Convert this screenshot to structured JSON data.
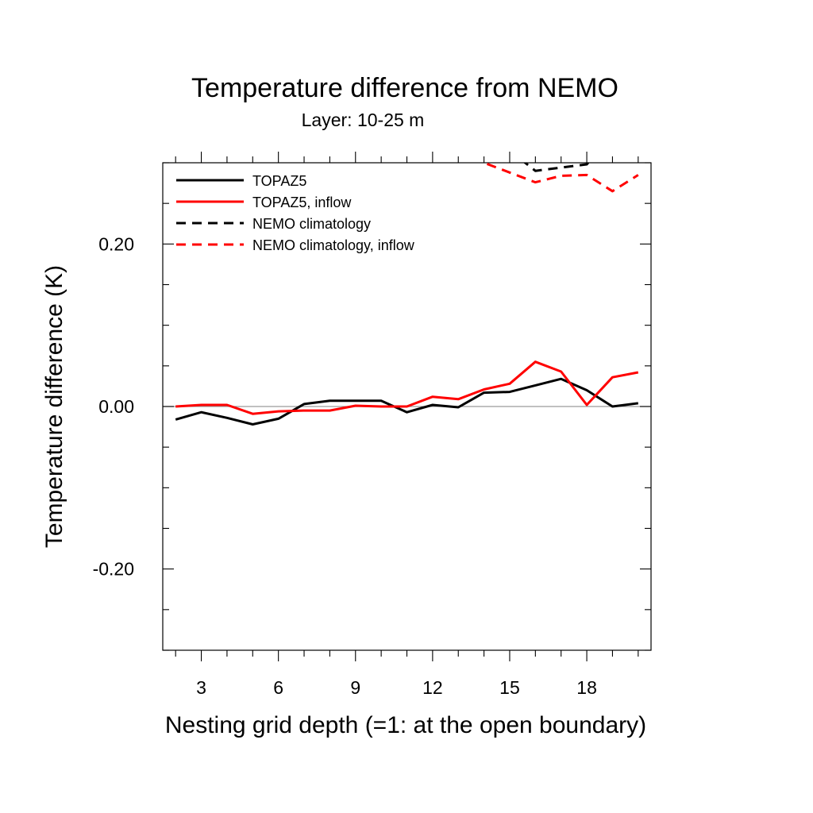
{
  "chart_data": {
    "type": "line",
    "title": "Temperature difference from NEMO",
    "subtitle": "Layer: 10-25 m",
    "xlabel": "Nesting grid depth (=1: at the open boundary)",
    "ylabel": "Temperature difference (K)",
    "xlim": [
      1.5,
      20.5
    ],
    "ylim": [
      -0.3,
      0.3
    ],
    "x_ticks": [
      3,
      6,
      9,
      12,
      15,
      18
    ],
    "x_tick_labels": [
      "3",
      "6",
      "9",
      "12",
      "15",
      "18"
    ],
    "y_ticks": [
      -0.2,
      0.0,
      0.2
    ],
    "y_tick_labels": [
      "-0.20",
      "0.00",
      "0.20"
    ],
    "reference_line": 0.0,
    "legend_position": "top-left",
    "series": [
      {
        "name": "TOPAZ5",
        "color": "#000000",
        "dash": "solid",
        "x": [
          2,
          3,
          4,
          5,
          6,
          7,
          8,
          9,
          10,
          11,
          12,
          13,
          14,
          15,
          16,
          17,
          18,
          19,
          20
        ],
        "y": [
          -0.016,
          -0.007,
          -0.014,
          -0.022,
          -0.015,
          0.003,
          0.007,
          0.007,
          0.007,
          -0.007,
          0.002,
          -0.001,
          0.017,
          0.018,
          0.026,
          0.034,
          0.02,
          0.0,
          0.004
        ]
      },
      {
        "name": "TOPAZ5, inflow",
        "color": "#ff0000",
        "dash": "solid",
        "x": [
          2,
          3,
          4,
          5,
          6,
          7,
          8,
          9,
          10,
          11,
          12,
          13,
          14,
          15,
          16,
          17,
          18,
          19,
          20
        ],
        "y": [
          0.0,
          0.002,
          0.002,
          -0.009,
          -0.006,
          -0.005,
          -0.005,
          0.001,
          0.0,
          0.0,
          0.012,
          0.009,
          0.021,
          0.028,
          0.055,
          0.043,
          0.002,
          0.036,
          0.042
        ]
      },
      {
        "name": "NEMO climatology",
        "color": "#000000",
        "dash": "dashed",
        "x": [
          14,
          15,
          16,
          17,
          18,
          19,
          20
        ],
        "y": [
          0.342,
          0.315,
          0.29,
          0.294,
          0.298,
          0.334,
          0.343
        ]
      },
      {
        "name": "NEMO climatology, inflow",
        "color": "#ff0000",
        "dash": "dashed",
        "x": [
          13,
          14,
          15,
          16,
          17,
          18,
          19,
          20
        ],
        "y": [
          0.315,
          0.3,
          0.288,
          0.276,
          0.284,
          0.285,
          0.265,
          0.285
        ]
      }
    ]
  }
}
